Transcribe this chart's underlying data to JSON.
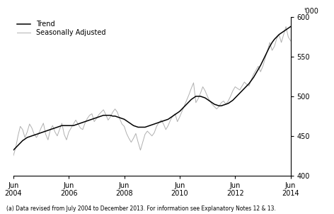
{
  "footnote": "(a) Data revised from July 2004 to December 2013. For information see Explanatory Notes 12 & 13.",
  "legend_entries": [
    "Trend",
    "Seasonally Adjusted"
  ],
  "trend_color": "#000000",
  "seasonal_color": "#b0b0b0",
  "ylim": [
    400,
    600
  ],
  "yticks": [
    400,
    450,
    500,
    550,
    600
  ],
  "ylabel_right": "'000",
  "xtick_labels": [
    "Jun\n2004",
    "Jun\n2006",
    "Jun\n2008",
    "Jun\n2010",
    "Jun\n2012",
    "Jun\n2014"
  ],
  "xtick_positions": [
    0,
    24,
    48,
    72,
    96,
    120
  ],
  "n_months": 121,
  "trend": [
    432,
    435,
    438,
    441,
    444,
    446,
    448,
    449,
    450,
    451,
    452,
    453,
    454,
    455,
    456,
    457,
    458,
    459,
    460,
    461,
    462,
    463,
    463,
    463,
    463,
    463,
    463,
    464,
    465,
    466,
    467,
    468,
    469,
    470,
    471,
    472,
    473,
    474,
    475,
    476,
    476,
    476,
    476,
    475,
    475,
    474,
    473,
    472,
    471,
    469,
    467,
    465,
    463,
    462,
    461,
    461,
    461,
    461,
    462,
    463,
    464,
    465,
    466,
    467,
    468,
    469,
    470,
    471,
    473,
    475,
    477,
    479,
    481,
    484,
    487,
    490,
    493,
    496,
    498,
    500,
    500,
    500,
    499,
    498,
    496,
    494,
    492,
    490,
    489,
    488,
    488,
    489,
    490,
    491,
    493,
    495,
    498,
    501,
    504,
    507,
    510,
    513,
    516,
    520,
    524,
    529,
    534,
    539,
    545,
    551,
    557,
    563,
    568,
    572,
    575,
    578,
    580,
    582,
    584,
    586,
    588
  ],
  "seasonal": [
    425,
    435,
    450,
    462,
    458,
    448,
    455,
    465,
    460,
    452,
    448,
    453,
    460,
    466,
    452,
    445,
    458,
    463,
    455,
    450,
    458,
    466,
    452,
    445,
    455,
    460,
    465,
    470,
    465,
    460,
    458,
    466,
    472,
    476,
    478,
    468,
    472,
    477,
    480,
    483,
    477,
    470,
    474,
    480,
    484,
    480,
    472,
    465,
    462,
    453,
    447,
    442,
    447,
    453,
    442,
    432,
    442,
    452,
    456,
    453,
    450,
    454,
    462,
    467,
    470,
    465,
    458,
    463,
    470,
    475,
    478,
    468,
    474,
    481,
    488,
    495,
    502,
    510,
    517,
    492,
    497,
    504,
    512,
    507,
    500,
    494,
    490,
    487,
    484,
    487,
    492,
    494,
    490,
    494,
    500,
    507,
    512,
    510,
    508,
    513,
    518,
    515,
    513,
    521,
    528,
    533,
    538,
    531,
    538,
    548,
    558,
    568,
    558,
    563,
    573,
    578,
    568,
    578,
    588,
    575,
    570
  ]
}
